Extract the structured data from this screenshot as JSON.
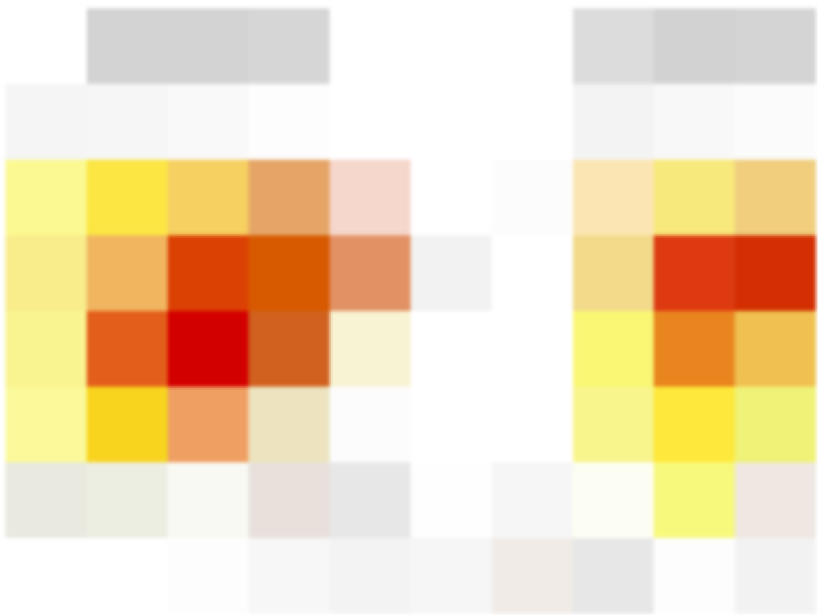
{
  "chart_data": {
    "type": "heatmap",
    "rows": 8,
    "cols": 10,
    "cells": [
      [
        "#ffffff",
        "#d3d3d3",
        "#d3d3d3",
        "#d6d6d6",
        "#ffffff",
        "#ffffff",
        "#ffffff",
        "#dcdcdc",
        "#d2d2d2",
        "#d4d4d4"
      ],
      [
        "#f5f5f5",
        "#f6f6f6",
        "#f9f9f9",
        "#fdfdfd",
        "#ffffff",
        "#ffffff",
        "#ffffff",
        "#f3f3f3",
        "#f8f8f8",
        "#fbfbfb"
      ],
      [
        "#fbf991",
        "#fbe643",
        "#f6d061",
        "#e6a566",
        "#f6d7cc",
        "#ffffff",
        "#fcfcfc",
        "#fbe6b3",
        "#f8e97c",
        "#f0ce7e"
      ],
      [
        "#f8ec8b",
        "#f1b560",
        "#dc4104",
        "#d75a00",
        "#e29164",
        "#f2f2f2",
        "#ffffff",
        "#f2da8a",
        "#dd3a12",
        "#d32f02"
      ],
      [
        "#f9f390",
        "#e35e1a",
        "#d30000",
        "#d0611f",
        "#f8f3d3",
        "#ffffff",
        "#ffffff",
        "#f9f774",
        "#e9851e",
        "#f0c150"
      ],
      [
        "#fbf999",
        "#f8d41f",
        "#ef9f62",
        "#ede4bf",
        "#fcfcfc",
        "#ffffff",
        "#ffffff",
        "#f9f58d",
        "#fde83b",
        "#eff276"
      ],
      [
        "#e9e9df",
        "#eceee2",
        "#f8f9f3",
        "#e8e0db",
        "#e7e7e7",
        "#fefefe",
        "#f6f6f6",
        "#fdfef3",
        "#f7f97d",
        "#efe7e1"
      ],
      [
        "#ffffff",
        "#ffffff",
        "#fdfdfd",
        "#f7f7f7",
        "#f3f3f3",
        "#f6f6f6",
        "#f0ebe7",
        "#e7e7e7",
        "#fdfdfd",
        "#f3f2f2"
      ]
    ]
  }
}
